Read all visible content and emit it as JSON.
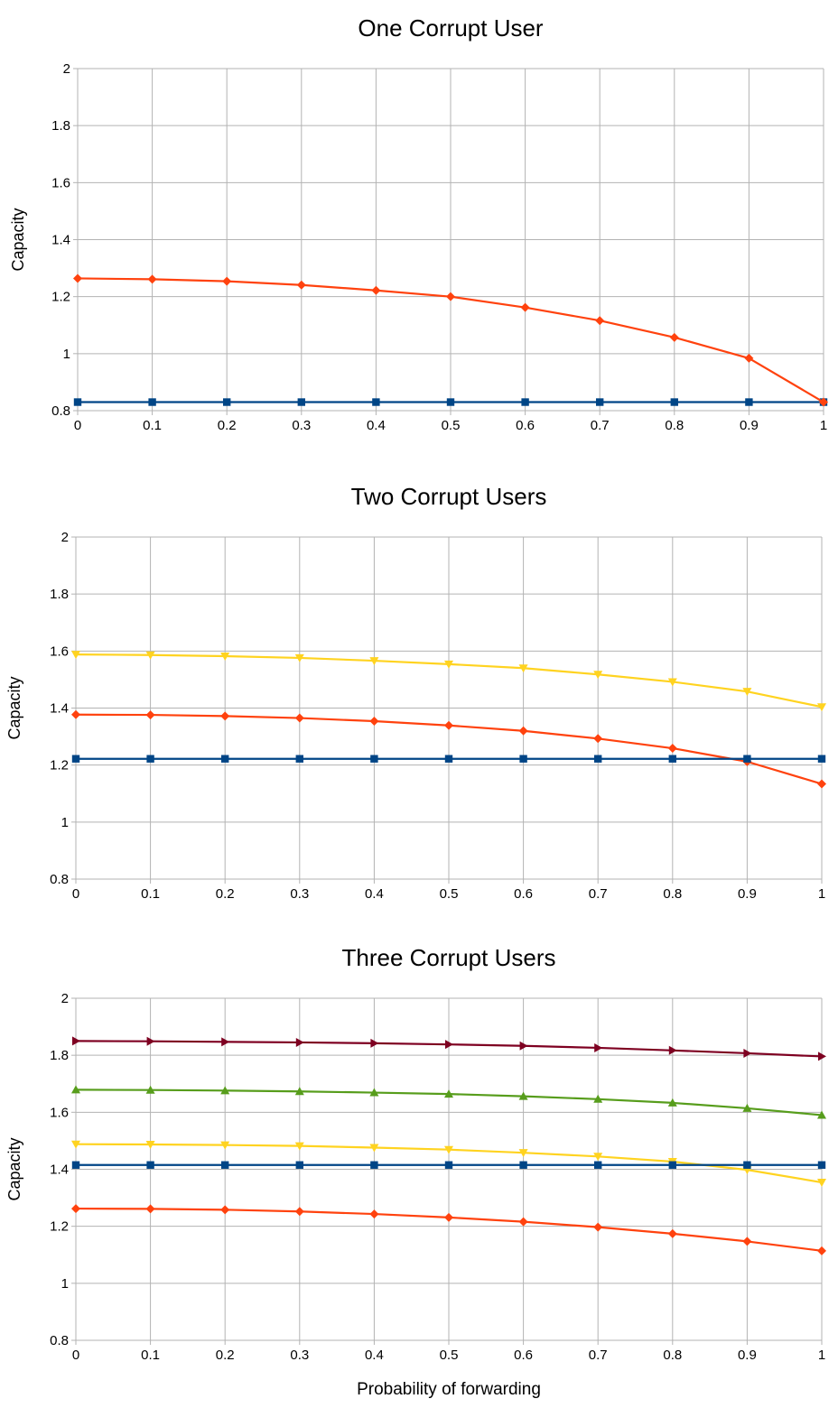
{
  "chart_data": [
    {
      "type": "line",
      "title": "One Corrupt User",
      "xlabel": "",
      "ylabel": "Capacity",
      "xlim": [
        0,
        1
      ],
      "ylim": [
        0.8,
        2
      ],
      "grid": true,
      "x_ticks": [
        "0",
        "0.1",
        "0.2",
        "0.3",
        "0.4",
        "0.5",
        "0.6",
        "0.7",
        "0.8",
        "0.9",
        "1"
      ],
      "y_ticks": [
        "0.8",
        "1",
        "1.2",
        "1.4",
        "1.6",
        "1.8",
        "2"
      ],
      "x": [
        0,
        0.1,
        0.2,
        0.3,
        0.4,
        0.5,
        0.6,
        0.7,
        0.8,
        0.9,
        1
      ],
      "series": [
        {
          "color": "#004586",
          "marker": "square",
          "values": [
            0.83,
            0.83,
            0.83,
            0.83,
            0.83,
            0.83,
            0.83,
            0.83,
            0.83,
            0.83,
            0.83
          ]
        },
        {
          "color": "#ff420e",
          "marker": "diamond",
          "values": [
            1.264,
            1.261,
            1.254,
            1.241,
            1.222,
            1.2,
            1.162,
            1.116,
            1.057,
            0.984,
            0.83
          ]
        }
      ]
    },
    {
      "type": "line",
      "title": "Two Corrupt Users",
      "xlabel": "",
      "ylabel": "Capacity",
      "xlim": [
        0,
        1
      ],
      "ylim": [
        0.8,
        2
      ],
      "grid": true,
      "x_ticks": [
        "0",
        "0.1",
        "0.2",
        "0.3",
        "0.4",
        "0.5",
        "0.6",
        "0.7",
        "0.8",
        "0.9",
        "1"
      ],
      "y_ticks": [
        "0.8",
        "1",
        "1.2",
        "1.4",
        "1.6",
        "1.8",
        "2"
      ],
      "x": [
        0,
        0.1,
        0.2,
        0.3,
        0.4,
        0.5,
        0.6,
        0.7,
        0.8,
        0.9,
        1
      ],
      "series": [
        {
          "color": "#ffd320",
          "marker": "triangle-down",
          "values": [
            1.588,
            1.586,
            1.582,
            1.576,
            1.566,
            1.554,
            1.54,
            1.518,
            1.492,
            1.458,
            1.404
          ]
        },
        {
          "color": "#ff420e",
          "marker": "diamond",
          "values": [
            1.377,
            1.376,
            1.372,
            1.365,
            1.354,
            1.339,
            1.32,
            1.293,
            1.259,
            1.212,
            1.134
          ]
        },
        {
          "color": "#004586",
          "marker": "square",
          "values": [
            1.222,
            1.222,
            1.222,
            1.222,
            1.222,
            1.222,
            1.222,
            1.222,
            1.222,
            1.222,
            1.222
          ]
        }
      ]
    },
    {
      "type": "line",
      "title": "Three Corrupt Users",
      "xlabel": "Probability of forwarding",
      "ylabel": "Capacity",
      "xlim": [
        0,
        1
      ],
      "ylim": [
        0.8,
        2
      ],
      "grid": true,
      "x_ticks": [
        "0",
        "0.1",
        "0.2",
        "0.3",
        "0.4",
        "0.5",
        "0.6",
        "0.7",
        "0.8",
        "0.9",
        "1"
      ],
      "y_ticks": [
        "0.8",
        "1",
        "1.2",
        "1.4",
        "1.6",
        "1.8",
        "2"
      ],
      "x": [
        0,
        0.1,
        0.2,
        0.3,
        0.4,
        0.5,
        0.6,
        0.7,
        0.8,
        0.9,
        1
      ],
      "series": [
        {
          "color": "#7e0021",
          "marker": "triangle-right",
          "values": [
            1.85,
            1.849,
            1.847,
            1.845,
            1.842,
            1.838,
            1.833,
            1.826,
            1.817,
            1.807,
            1.796
          ]
        },
        {
          "color": "#579d1c",
          "marker": "triangle-up",
          "values": [
            1.679,
            1.678,
            1.676,
            1.673,
            1.669,
            1.664,
            1.656,
            1.646,
            1.633,
            1.614,
            1.59
          ]
        },
        {
          "color": "#ffd320",
          "marker": "triangle-down",
          "values": [
            1.488,
            1.487,
            1.485,
            1.482,
            1.476,
            1.469,
            1.458,
            1.445,
            1.427,
            1.398,
            1.354
          ]
        },
        {
          "color": "#004586",
          "marker": "square",
          "values": [
            1.415,
            1.415,
            1.415,
            1.415,
            1.415,
            1.415,
            1.415,
            1.415,
            1.415,
            1.415,
            1.415
          ]
        },
        {
          "color": "#ff420e",
          "marker": "diamond",
          "values": [
            1.262,
            1.261,
            1.258,
            1.252,
            1.243,
            1.231,
            1.216,
            1.197,
            1.174,
            1.147,
            1.114
          ]
        }
      ]
    }
  ]
}
